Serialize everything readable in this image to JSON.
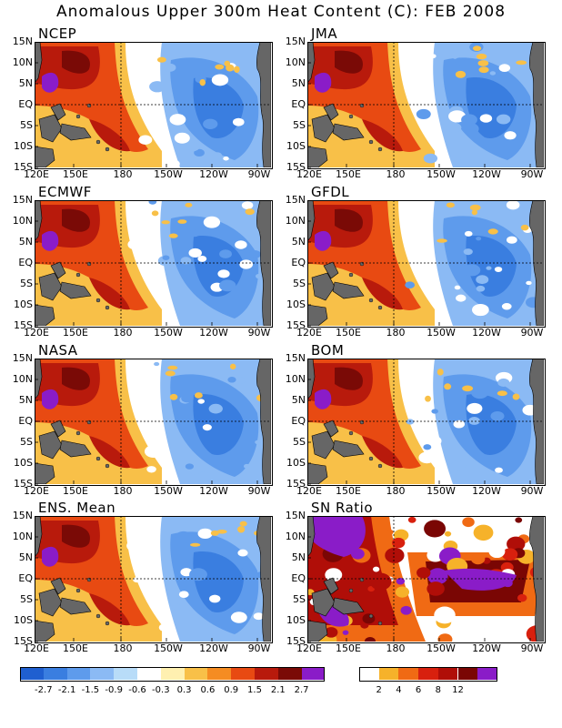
{
  "title": "Anomalous Upper 300m Heat Content (C): FEB 2008",
  "lat_labels": [
    "15N",
    "10N",
    "5N",
    "EQ",
    "5S",
    "10S",
    "15S"
  ],
  "lon_labels": [
    "120E",
    "150E",
    "180",
    "150W",
    "120W",
    "90W"
  ],
  "panels": [
    {
      "name": "NCEP",
      "type": "anomaly"
    },
    {
      "name": "JMA",
      "type": "anomaly"
    },
    {
      "name": "ECMWF",
      "type": "anomaly"
    },
    {
      "name": "GFDL",
      "type": "anomaly"
    },
    {
      "name": "NASA",
      "type": "anomaly"
    },
    {
      "name": "BOM",
      "type": "anomaly"
    },
    {
      "name": "ENS. Mean",
      "type": "anomaly"
    },
    {
      "name": "SN Ratio",
      "type": "snr"
    }
  ],
  "anomaly_colorbar": {
    "colors": [
      "#1f5fd0",
      "#3a7ee0",
      "#5e9bec",
      "#8bbaf4",
      "#b8dcf8",
      "#ffffff",
      "#fff0b0",
      "#f8c048",
      "#f58c22",
      "#e84a12",
      "#b81a0c",
      "#7a0a06",
      "#8a1cc8"
    ],
    "labels": [
      "-2.7",
      "-2.1",
      "-1.5",
      "-0.9",
      "-0.6",
      "-0.3",
      "0.3",
      "0.6",
      "0.9",
      "1.5",
      "2.1",
      "2.7"
    ]
  },
  "snr_colorbar": {
    "colors": [
      "#ffffff",
      "#f6b22a",
      "#f06a14",
      "#d8200e",
      "#b00e08",
      "#7a0604",
      "#8a1cc8"
    ],
    "labels": [
      "2",
      "4",
      "6",
      "8",
      "12"
    ]
  },
  "land_color": "#666666"
}
